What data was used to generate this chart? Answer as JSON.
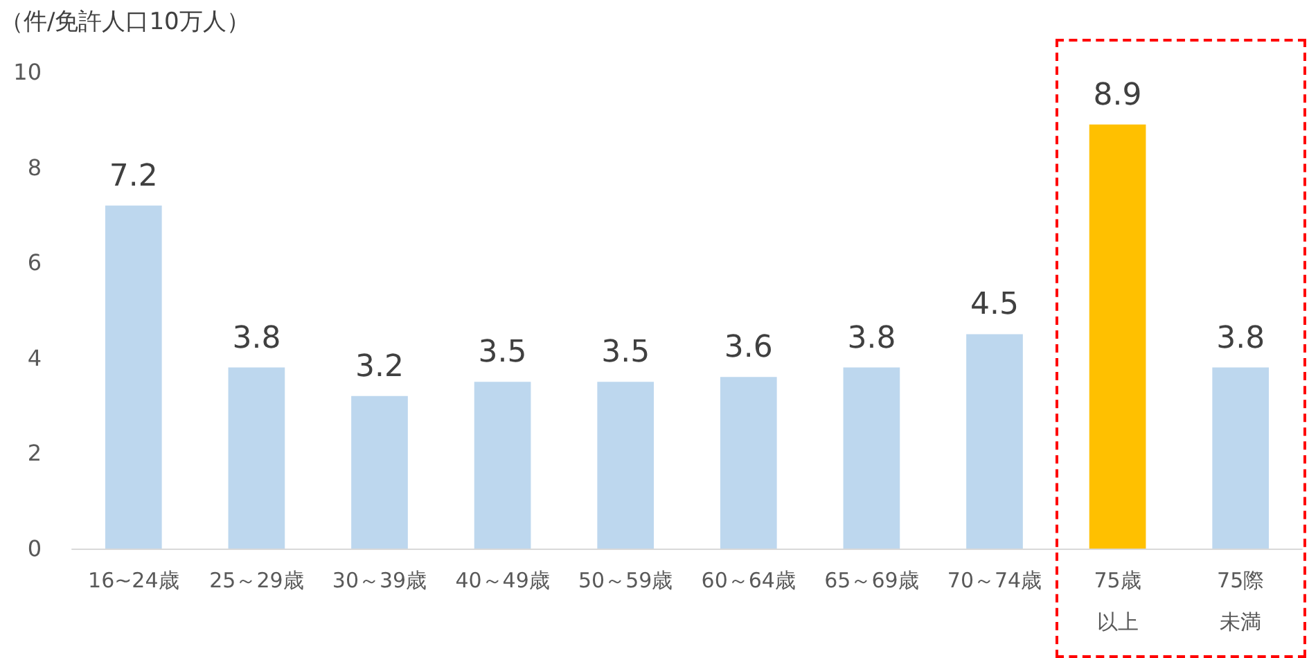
{
  "chart_data": {
    "type": "bar",
    "ylabel": "（件/免許人口10万人）",
    "categories": [
      "16~24歳",
      "25～29歳",
      "30～39歳",
      "40～49歳",
      "50～59歳",
      "60～64歳",
      "65～69歳",
      "70～74歳",
      "75歳以上",
      "75際未満"
    ],
    "values": [
      7.2,
      3.8,
      3.2,
      3.5,
      3.5,
      3.6,
      3.8,
      4.5,
      8.9,
      3.8
    ],
    "colors": [
      "#bdd7ee",
      "#bdd7ee",
      "#bdd7ee",
      "#bdd7ee",
      "#bdd7ee",
      "#bdd7ee",
      "#bdd7ee",
      "#bdd7ee",
      "#ffc000",
      "#bdd7ee"
    ],
    "ylim": [
      0,
      10
    ],
    "yticks": [
      0,
      2,
      4,
      6,
      8,
      10
    ],
    "grid": false,
    "data_labels": true
  }
}
